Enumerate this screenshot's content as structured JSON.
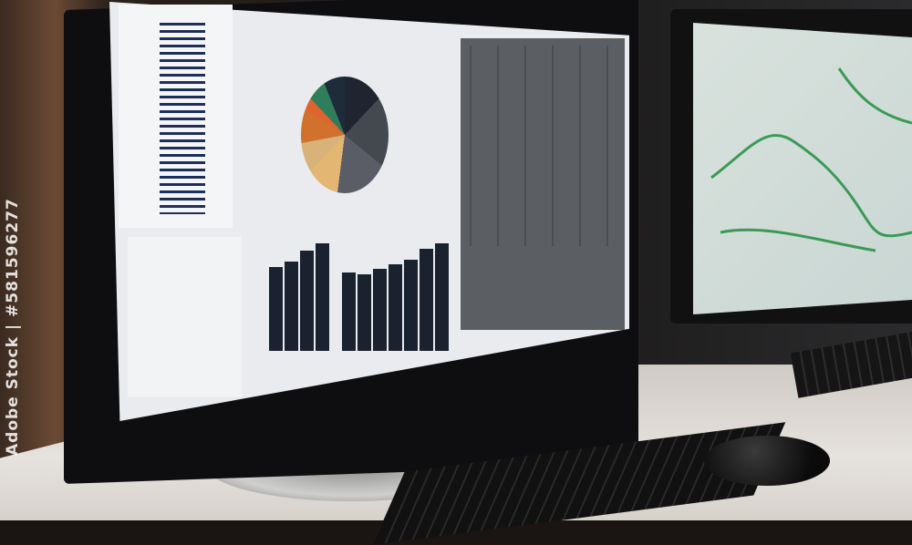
{
  "scene": "monitors displaying dashboards with pie chart, bar chart, table and map",
  "watermark": {
    "text": "Adobe Stock | #581596277"
  },
  "colors": {
    "pie_orange": "#d0712d",
    "pie_green": "#2f7d5a",
    "pie_tan": "#e3b674",
    "bar_dark": "#1a2230",
    "map_river": "#3a9a55"
  },
  "chart_data": {
    "type": "bar",
    "values": [
      92,
      98,
      110,
      118,
      86,
      84,
      90,
      95,
      100,
      112,
      118
    ]
  }
}
